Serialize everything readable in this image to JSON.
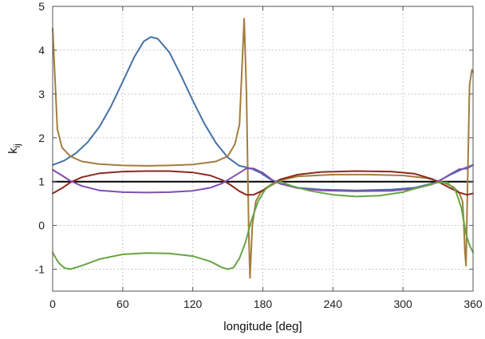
{
  "chart_data": {
    "type": "line",
    "xlabel": "longitude [deg]",
    "ylabel": {
      "main": "k",
      "subscript": "ij"
    },
    "xlim": [
      0,
      360
    ],
    "ylim": [
      -1.5,
      5
    ],
    "x_ticks": [
      0,
      60,
      120,
      180,
      240,
      300,
      360
    ],
    "y_ticks": [
      -1,
      0,
      1,
      2,
      3,
      4,
      5
    ],
    "grid": true,
    "series": [
      {
        "color": "#000000",
        "points": [
          [
            0,
            1
          ],
          [
            360,
            1
          ]
        ]
      },
      {
        "color": "#4472a8",
        "points": [
          [
            0,
            1.38
          ],
          [
            10,
            1.48
          ],
          [
            20,
            1.65
          ],
          [
            30,
            1.9
          ],
          [
            40,
            2.25
          ],
          [
            50,
            2.72
          ],
          [
            60,
            3.28
          ],
          [
            70,
            3.85
          ],
          [
            78,
            4.2
          ],
          [
            84,
            4.3
          ],
          [
            90,
            4.26
          ],
          [
            100,
            3.95
          ],
          [
            110,
            3.42
          ],
          [
            120,
            2.85
          ],
          [
            130,
            2.32
          ],
          [
            140,
            1.88
          ],
          [
            150,
            1.55
          ],
          [
            160,
            1.36
          ],
          [
            170,
            1.3
          ],
          [
            178,
            1.2
          ],
          [
            186,
            1.06
          ],
          [
            195,
            0.95
          ],
          [
            210,
            0.86
          ],
          [
            230,
            0.82
          ],
          [
            260,
            0.8
          ],
          [
            290,
            0.82
          ],
          [
            310,
            0.86
          ],
          [
            328,
            0.98
          ],
          [
            340,
            1.15
          ],
          [
            352,
            1.3
          ],
          [
            360,
            1.38
          ]
        ]
      },
      {
        "color": "#a37d3e",
        "points": [
          [
            0,
            4.5
          ],
          [
            4,
            2.2
          ],
          [
            8,
            1.78
          ],
          [
            15,
            1.58
          ],
          [
            25,
            1.46
          ],
          [
            40,
            1.4
          ],
          [
            60,
            1.37
          ],
          [
            80,
            1.36
          ],
          [
            100,
            1.37
          ],
          [
            120,
            1.39
          ],
          [
            140,
            1.46
          ],
          [
            150,
            1.58
          ],
          [
            156,
            1.85
          ],
          [
            160,
            2.3
          ],
          [
            164,
            4.72
          ],
          [
            166,
            3.0
          ],
          [
            168,
            -0.2
          ],
          [
            169,
            -1.2
          ],
          [
            171,
            0.0
          ],
          [
            174,
            0.55
          ],
          [
            178,
            0.75
          ],
          [
            185,
            0.88
          ],
          [
            195,
            1.03
          ],
          [
            210,
            1.12
          ],
          [
            240,
            1.16
          ],
          [
            270,
            1.16
          ],
          [
            300,
            1.14
          ],
          [
            320,
            1.08
          ],
          [
            335,
            0.98
          ],
          [
            343,
            0.88
          ],
          [
            348,
            0.75
          ],
          [
            351,
            0.55
          ],
          [
            352,
            0.1
          ],
          [
            353,
            -0.6
          ],
          [
            354,
            -0.92
          ],
          [
            355,
            0.5
          ],
          [
            357,
            3.2
          ],
          [
            359,
            3.55
          ],
          [
            360,
            3.5
          ]
        ]
      },
      {
        "color": "#8b2a1e",
        "points": [
          [
            0,
            0.73
          ],
          [
            8,
            0.85
          ],
          [
            15,
            0.98
          ],
          [
            25,
            1.1
          ],
          [
            40,
            1.19
          ],
          [
            60,
            1.23
          ],
          [
            80,
            1.24
          ],
          [
            100,
            1.24
          ],
          [
            120,
            1.21
          ],
          [
            135,
            1.14
          ],
          [
            145,
            1.04
          ],
          [
            152,
            0.93
          ],
          [
            160,
            0.78
          ],
          [
            166,
            0.7
          ],
          [
            172,
            0.7
          ],
          [
            180,
            0.8
          ],
          [
            188,
            0.95
          ],
          [
            195,
            1.05
          ],
          [
            210,
            1.16
          ],
          [
            230,
            1.22
          ],
          [
            260,
            1.24
          ],
          [
            290,
            1.23
          ],
          [
            310,
            1.18
          ],
          [
            325,
            1.06
          ],
          [
            332,
            0.97
          ],
          [
            340,
            0.86
          ],
          [
            348,
            0.75
          ],
          [
            355,
            0.7
          ],
          [
            360,
            0.73
          ]
        ]
      },
      {
        "color": "#7f4fb0",
        "points": [
          [
            0,
            1.27
          ],
          [
            8,
            1.14
          ],
          [
            15,
            1.02
          ],
          [
            25,
            0.9
          ],
          [
            40,
            0.8
          ],
          [
            60,
            0.76
          ],
          [
            80,
            0.75
          ],
          [
            100,
            0.76
          ],
          [
            120,
            0.79
          ],
          [
            135,
            0.86
          ],
          [
            145,
            0.96
          ],
          [
            152,
            1.07
          ],
          [
            160,
            1.2
          ],
          [
            166,
            1.3
          ],
          [
            172,
            1.3
          ],
          [
            180,
            1.2
          ],
          [
            188,
            1.04
          ],
          [
            195,
            0.95
          ],
          [
            210,
            0.85
          ],
          [
            230,
            0.8
          ],
          [
            260,
            0.78
          ],
          [
            290,
            0.79
          ],
          [
            310,
            0.84
          ],
          [
            325,
            0.94
          ],
          [
            332,
            1.03
          ],
          [
            340,
            1.16
          ],
          [
            348,
            1.28
          ],
          [
            355,
            1.3
          ],
          [
            360,
            1.38
          ]
        ]
      },
      {
        "color": "#66a644",
        "points": [
          [
            0,
            -0.62
          ],
          [
            5,
            -0.85
          ],
          [
            10,
            -0.97
          ],
          [
            15,
            -1.0
          ],
          [
            25,
            -0.92
          ],
          [
            40,
            -0.77
          ],
          [
            60,
            -0.66
          ],
          [
            80,
            -0.63
          ],
          [
            100,
            -0.64
          ],
          [
            120,
            -0.7
          ],
          [
            135,
            -0.82
          ],
          [
            145,
            -0.96
          ],
          [
            150,
            -1.0
          ],
          [
            155,
            -0.96
          ],
          [
            160,
            -0.75
          ],
          [
            165,
            -0.4
          ],
          [
            170,
            0.1
          ],
          [
            176,
            0.55
          ],
          [
            182,
            0.82
          ],
          [
            188,
            0.95
          ],
          [
            195,
            1.0
          ],
          [
            205,
            0.9
          ],
          [
            220,
            0.79
          ],
          [
            240,
            0.7
          ],
          [
            260,
            0.66
          ],
          [
            280,
            0.68
          ],
          [
            300,
            0.76
          ],
          [
            315,
            0.88
          ],
          [
            330,
            0.98
          ],
          [
            338,
            0.98
          ],
          [
            345,
            0.8
          ],
          [
            350,
            0.4
          ],
          [
            354,
            -0.2
          ],
          [
            357,
            -0.45
          ],
          [
            360,
            -0.62
          ]
        ]
      }
    ]
  }
}
